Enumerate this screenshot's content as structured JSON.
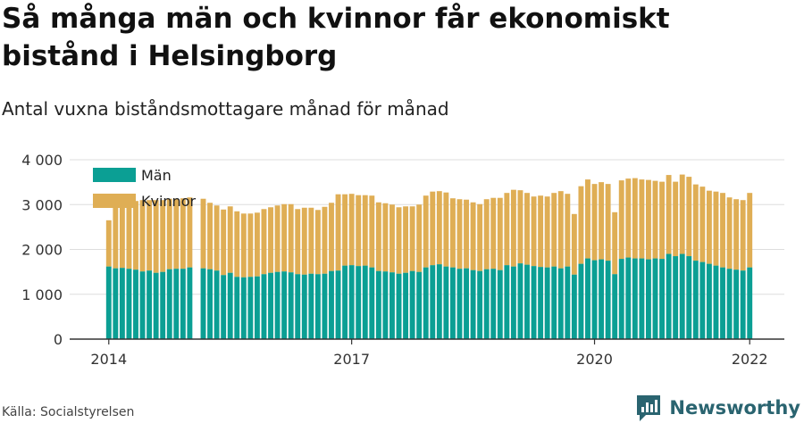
{
  "title": "Så många män och kvinnor får ekonomiskt bistånd i Helsingborg",
  "subtitle": "Antal vuxna biståndsmottagare månad för månad",
  "source": "Källa: Socialstyrelsen",
  "brand": "Newsworthy",
  "colors": {
    "men": "#0b9f94",
    "women": "#dfae55",
    "grid": "#dddddd",
    "axis": "#333333",
    "brand": "#2a6470"
  },
  "chart_data": {
    "type": "bar",
    "stacked": true,
    "x_start": "2014-01",
    "x_ticks": [
      "2014",
      "2017",
      "2020",
      "2022"
    ],
    "ylim": [
      0,
      4000
    ],
    "y_ticks": [
      "0",
      "1 000",
      "2 000",
      "3 000",
      "4 000"
    ],
    "grid": true,
    "legend_position": "top-left",
    "series": [
      {
        "name": "Män",
        "values": [
          1620,
          1580,
          1590,
          1570,
          1550,
          1510,
          1530,
          1480,
          1500,
          1560,
          1570,
          1570,
          1600,
          null,
          1580,
          1560,
          1530,
          1430,
          1480,
          1390,
          1380,
          1390,
          1400,
          1450,
          1480,
          1500,
          1510,
          1490,
          1450,
          1440,
          1460,
          1450,
          1460,
          1520,
          1530,
          1640,
          1650,
          1630,
          1640,
          1600,
          1520,
          1510,
          1490,
          1460,
          1480,
          1520,
          1500,
          1600,
          1650,
          1670,
          1620,
          1600,
          1570,
          1580,
          1540,
          1520,
          1560,
          1570,
          1540,
          1650,
          1620,
          1690,
          1660,
          1630,
          1610,
          1600,
          1620,
          1580,
          1620,
          1440,
          1680,
          1800,
          1760,
          1780,
          1750,
          1450,
          1790,
          1820,
          1800,
          1800,
          1780,
          1800,
          1790,
          1900,
          1850,
          1900,
          1850,
          1750,
          1720,
          1680,
          1640,
          1600,
          1570,
          1550,
          1530,
          1600
        ]
      },
      {
        "name": "Kvinnor",
        "values": [
          1030,
          1450,
          1510,
          1520,
          1530,
          1590,
          1570,
          1620,
          1600,
          1570,
          1560,
          1570,
          1560,
          null,
          1550,
          1480,
          1450,
          1460,
          1480,
          1460,
          1420,
          1410,
          1420,
          1450,
          1460,
          1480,
          1500,
          1520,
          1450,
          1490,
          1470,
          1430,
          1490,
          1520,
          1700,
          1590,
          1590,
          1580,
          1570,
          1600,
          1530,
          1520,
          1510,
          1480,
          1480,
          1440,
          1500,
          1600,
          1640,
          1630,
          1650,
          1540,
          1550,
          1530,
          1510,
          1490,
          1560,
          1580,
          1610,
          1610,
          1710,
          1630,
          1600,
          1550,
          1590,
          1580,
          1640,
          1720,
          1620,
          1350,
          1730,
          1760,
          1700,
          1720,
          1710,
          1380,
          1750,
          1760,
          1790,
          1760,
          1770,
          1730,
          1720,
          1760,
          1660,
          1770,
          1770,
          1700,
          1680,
          1630,
          1650,
          1660,
          1590,
          1570,
          1570,
          1660
        ]
      }
    ]
  }
}
